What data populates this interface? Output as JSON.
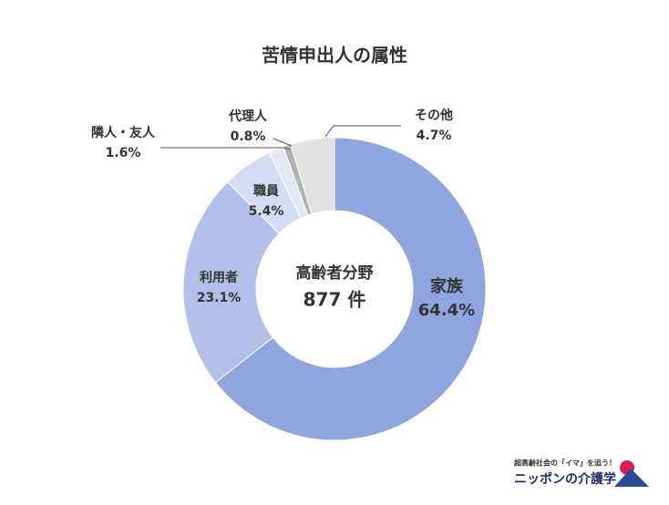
{
  "chart_data": {
    "type": "donut",
    "title": "苦情申出人の属性",
    "center_title": "高齢者分野",
    "center_total": "877 件",
    "categories": [
      "家族",
      "利用者",
      "職員",
      "隣人・友人",
      "代理人",
      "その他"
    ],
    "values": [
      64.4,
      23.1,
      5.4,
      1.6,
      0.8,
      4.7
    ],
    "value_labels": [
      "64.4%",
      "23.1%",
      "5.4%",
      "1.6%",
      "0.8%",
      "4.7%"
    ],
    "colors": [
      "#8ea5de",
      "#b1c0e9",
      "#d3dcf4",
      "#e4e8f2",
      "#b3b3b3",
      "#e2e2e2"
    ]
  },
  "logo": {
    "tagline": "超高齢社会の「イマ」を追う！",
    "name": "ニッポンの介護学"
  }
}
